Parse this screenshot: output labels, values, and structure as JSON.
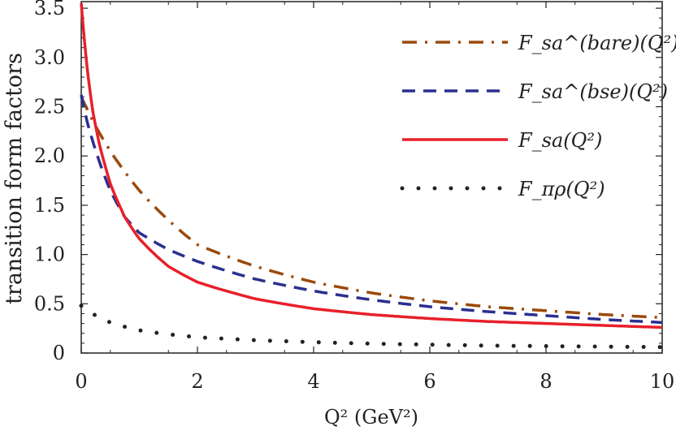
{
  "chart_data": {
    "type": "line",
    "xlabel": "Q² (GeV²)",
    "ylabel": "transition form factors",
    "xlim": [
      0,
      10
    ],
    "ylim": [
      0,
      3.6
    ],
    "xticks": [
      "0",
      "2",
      "4",
      "6",
      "8",
      "10"
    ],
    "yticks": [
      "0",
      "0.5",
      "1.0",
      "1.5",
      "2.0",
      "2.5",
      "3.0",
      "3.5"
    ],
    "grid": false,
    "legend_position": "top-right",
    "series": [
      {
        "name": "F_sa^(bare)(Q²)",
        "style": "dash-dot",
        "color": "#9a4a0c",
        "x": [
          0,
          0.25,
          0.5,
          1,
          1.5,
          2,
          3,
          4,
          5,
          6,
          7,
          8,
          9,
          10
        ],
        "y": [
          2.6,
          2.3,
          2.05,
          1.65,
          1.35,
          1.1,
          0.88,
          0.72,
          0.61,
          0.53,
          0.47,
          0.43,
          0.39,
          0.36
        ]
      },
      {
        "name": "F_sa^(bse)(Q²)",
        "style": "dashed",
        "color": "#2b2f8f",
        "x": [
          0,
          0.1,
          0.25,
          0.5,
          0.75,
          1,
          1.5,
          2,
          3,
          4,
          5,
          6,
          7,
          8,
          9,
          10
        ],
        "y": [
          2.62,
          2.35,
          2.05,
          1.65,
          1.38,
          1.22,
          1.05,
          0.93,
          0.75,
          0.63,
          0.54,
          0.47,
          0.42,
          0.38,
          0.34,
          0.31
        ]
      },
      {
        "name": "F_sa(Q²)",
        "style": "solid",
        "color": "#e8202a",
        "x": [
          0,
          0.05,
          0.1,
          0.2,
          0.3,
          0.5,
          0.75,
          1,
          1.5,
          2,
          3,
          4,
          5,
          6,
          7,
          8,
          9,
          10
        ],
        "y": [
          3.55,
          3.2,
          2.9,
          2.45,
          2.15,
          1.72,
          1.38,
          1.16,
          0.88,
          0.72,
          0.55,
          0.45,
          0.39,
          0.35,
          0.32,
          0.3,
          0.28,
          0.26
        ]
      },
      {
        "name": "F_πρ(Q²)",
        "style": "dotted",
        "color": "#222222",
        "x": [
          0,
          0.25,
          0.5,
          1,
          1.5,
          2,
          3,
          4,
          5,
          6,
          7,
          8,
          9,
          10
        ],
        "y": [
          0.48,
          0.38,
          0.31,
          0.23,
          0.19,
          0.16,
          0.13,
          0.11,
          0.095,
          0.085,
          0.075,
          0.07,
          0.065,
          0.06
        ]
      }
    ]
  }
}
